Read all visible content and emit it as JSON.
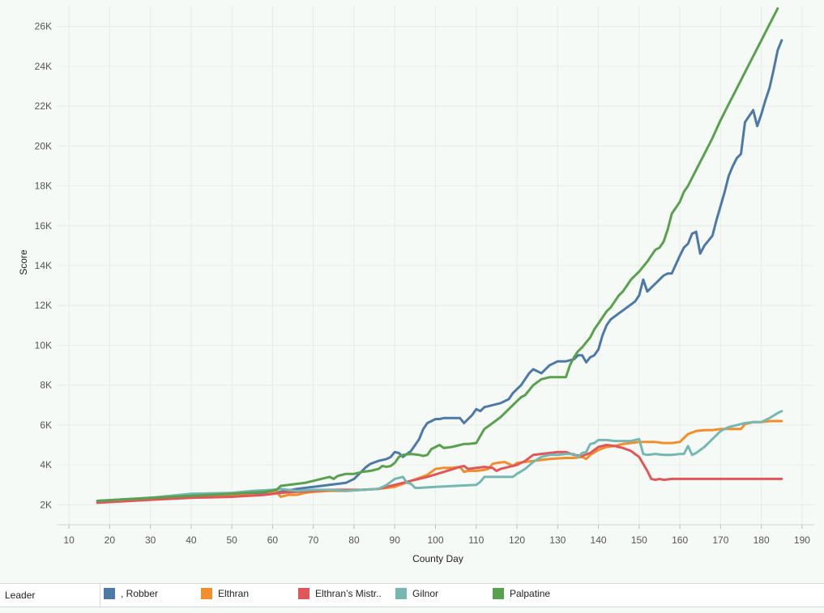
{
  "chart_data": {
    "type": "line",
    "xlabel": "County Day",
    "ylabel": "Score",
    "xlim": [
      7,
      193
    ],
    "ylim": [
      1000,
      27000
    ],
    "x_ticks": [
      10,
      20,
      30,
      40,
      50,
      60,
      70,
      80,
      90,
      100,
      110,
      120,
      130,
      140,
      150,
      160,
      170,
      180,
      190
    ],
    "y_ticks": [
      2000,
      4000,
      6000,
      8000,
      10000,
      12000,
      14000,
      16000,
      18000,
      20000,
      22000,
      24000,
      26000
    ],
    "y_tick_labels": [
      "2K",
      "4K",
      "6K",
      "8K",
      "10K",
      "12K",
      "14K",
      "16K",
      "18K",
      "20K",
      "22K",
      "24K",
      "26K"
    ],
    "grid": true,
    "legend_position": "bottom",
    "legend_title": "Leader",
    "series": [
      {
        "name": ", Robber",
        "color": "#4e79a7",
        "x": [
          17,
          30,
          40,
          50,
          58,
          62,
          66,
          70,
          74,
          78,
          80,
          81,
          82,
          83,
          84,
          86,
          88,
          89,
          90,
          91,
          92,
          93,
          94,
          95,
          96,
          97,
          98,
          99,
          100,
          101,
          102,
          104,
          106,
          107,
          108,
          109,
          110,
          111,
          112,
          114,
          116,
          118,
          119,
          120,
          121,
          122,
          123,
          124,
          126,
          128,
          130,
          132,
          133,
          134,
          135,
          136,
          137,
          138,
          139,
          140,
          141,
          142,
          143,
          145,
          147,
          149,
          150,
          151,
          152,
          153,
          154,
          155,
          156,
          157,
          158,
          160,
          161,
          162,
          163,
          164,
          165,
          166,
          168,
          169,
          170,
          171,
          172,
          173,
          174,
          175,
          176,
          177,
          178,
          179,
          180,
          181,
          182,
          183,
          184,
          185
        ],
        "y": [
          2150,
          2350,
          2450,
          2500,
          2550,
          2650,
          2800,
          2900,
          3000,
          3100,
          3300,
          3500,
          3700,
          3900,
          4050,
          4200,
          4300,
          4400,
          4650,
          4600,
          4400,
          4550,
          4700,
          5000,
          5300,
          5800,
          6100,
          6200,
          6300,
          6300,
          6350,
          6350,
          6350,
          6100,
          6300,
          6500,
          6800,
          6700,
          6900,
          7000,
          7100,
          7300,
          7600,
          7800,
          8000,
          8300,
          8600,
          8800,
          8600,
          9000,
          9200,
          9200,
          9250,
          9300,
          9500,
          9500,
          9150,
          9400,
          9500,
          9800,
          10500,
          11000,
          11300,
          11600,
          11900,
          12200,
          12500,
          13300,
          12700,
          12900,
          13100,
          13300,
          13500,
          13600,
          13600,
          14500,
          14900,
          15100,
          15600,
          15700,
          14600,
          15000,
          15500,
          16300,
          17000,
          17700,
          18500,
          19000,
          19400,
          19600,
          21200,
          21500,
          21800,
          21000,
          21600,
          22300,
          22900,
          23800,
          24800,
          25300
        ]
      },
      {
        "name": "Elthran",
        "color": "#f28e2b",
        "x": [
          17,
          30,
          40,
          50,
          58,
          61,
          62,
          64,
          66,
          68,
          70,
          74,
          78,
          82,
          86,
          90,
          94,
          98,
          100,
          102,
          104,
          106,
          107,
          108,
          110,
          112,
          113,
          114,
          115,
          117,
          118,
          119,
          120,
          124,
          128,
          132,
          134,
          136,
          137,
          138,
          140,
          142,
          144,
          146,
          148,
          150,
          152,
          154,
          156,
          158,
          160,
          162,
          164,
          166,
          168,
          170,
          172,
          174,
          175,
          176,
          177,
          178,
          180,
          182,
          185
        ],
        "y": [
          2150,
          2300,
          2400,
          2450,
          2500,
          2650,
          2400,
          2500,
          2500,
          2600,
          2650,
          2700,
          2700,
          2750,
          2800,
          2900,
          3200,
          3500,
          3800,
          3850,
          3850,
          3900,
          3650,
          3700,
          3700,
          3750,
          3800,
          4050,
          4100,
          4150,
          4050,
          3950,
          4100,
          4200,
          4300,
          4350,
          4350,
          4400,
          4300,
          4500,
          4750,
          4900,
          4950,
          5050,
          5100,
          5150,
          5150,
          5150,
          5100,
          5100,
          5150,
          5550,
          5700,
          5750,
          5750,
          5800,
          5800,
          5800,
          5800,
          6050,
          6100,
          6150,
          6150,
          6200,
          6200
        ]
      },
      {
        "name": "Elthran’s Mistr..",
        "color": "#e15759",
        "x": [
          17,
          30,
          40,
          50,
          58,
          62,
          66,
          70,
          74,
          78,
          82,
          86,
          90,
          94,
          98,
          102,
          106,
          107,
          108,
          110,
          112,
          114,
          115,
          116,
          118,
          120,
          122,
          124,
          126,
          130,
          132,
          134,
          136,
          138,
          140,
          142,
          144,
          146,
          148,
          150,
          152,
          153,
          154,
          155,
          156,
          158,
          160,
          165,
          170,
          175,
          180,
          185
        ],
        "y": [
          2100,
          2250,
          2350,
          2400,
          2500,
          2600,
          2650,
          2700,
          2750,
          2750,
          2750,
          2800,
          3000,
          3200,
          3400,
          3650,
          3900,
          3950,
          3800,
          3850,
          3900,
          3850,
          3700,
          3800,
          3900,
          4000,
          4200,
          4500,
          4550,
          4650,
          4650,
          4500,
          4450,
          4600,
          4900,
          5000,
          4950,
          4850,
          4700,
          4400,
          3700,
          3300,
          3250,
          3300,
          3250,
          3300,
          3300,
          3300,
          3300,
          3300,
          3300,
          3300
        ]
      },
      {
        "name": "Gilnor",
        "color": "#76b7b2",
        "x": [
          17,
          30,
          40,
          50,
          55,
          60,
          62,
          66,
          70,
          74,
          78,
          82,
          86,
          88,
          90,
          91,
          92,
          93,
          94,
          95,
          96,
          100,
          105,
          110,
          111,
          112,
          114,
          116,
          118,
          119,
          120,
          122,
          124,
          126,
          128,
          130,
          132,
          134,
          135,
          136,
          137,
          138,
          139,
          140,
          142,
          144,
          146,
          148,
          150,
          151,
          152,
          154,
          156,
          158,
          160,
          161,
          162,
          163,
          164,
          166,
          168,
          170,
          172,
          174,
          176,
          178,
          180,
          182,
          184,
          185
        ],
        "y": [
          2200,
          2350,
          2550,
          2600,
          2700,
          2750,
          2800,
          2700,
          2750,
          2750,
          2700,
          2750,
          2800,
          3000,
          3300,
          3350,
          3400,
          3100,
          3050,
          2850,
          2850,
          2900,
          2950,
          3000,
          3150,
          3400,
          3400,
          3400,
          3400,
          3400,
          3550,
          3800,
          4150,
          4400,
          4500,
          4500,
          4550,
          4550,
          4400,
          4600,
          4650,
          5050,
          5100,
          5250,
          5250,
          5200,
          5200,
          5200,
          5300,
          4550,
          4500,
          4550,
          4500,
          4500,
          4550,
          4550,
          4950,
          4500,
          4600,
          4900,
          5300,
          5700,
          5900,
          6000,
          6100,
          6150,
          6150,
          6350,
          6600,
          6700
        ]
      },
      {
        "name": "Palpatine",
        "color": "#59a14f",
        "x": [
          17,
          30,
          40,
          50,
          58,
          61,
          62,
          64,
          66,
          68,
          70,
          74,
          75,
          76,
          77,
          78,
          80,
          82,
          84,
          86,
          87,
          88,
          89,
          90,
          91,
          92,
          94,
          96,
          97,
          98,
          99,
          100,
          101,
          102,
          104,
          106,
          107,
          108,
          110,
          112,
          114,
          116,
          118,
          120,
          121,
          122,
          124,
          126,
          128,
          130,
          132,
          133,
          134,
          135,
          136,
          138,
          139,
          140,
          141,
          142,
          143,
          144,
          145,
          146,
          147,
          148,
          150,
          152,
          153,
          154,
          155,
          156,
          157,
          158,
          159,
          160,
          161,
          162,
          164,
          166,
          168,
          170,
          172,
          174,
          176,
          178,
          180,
          182,
          184
        ],
        "y": [
          2200,
          2350,
          2450,
          2550,
          2650,
          2750,
          2950,
          3000,
          3050,
          3100,
          3200,
          3400,
          3300,
          3450,
          3500,
          3550,
          3550,
          3650,
          3700,
          3800,
          3950,
          3900,
          3950,
          4100,
          4400,
          4500,
          4550,
          4500,
          4450,
          4500,
          4800,
          4900,
          5000,
          4850,
          4900,
          5000,
          5050,
          5050,
          5100,
          5800,
          6100,
          6400,
          6800,
          7200,
          7400,
          7500,
          8000,
          8300,
          8400,
          8400,
          8400,
          9000,
          9400,
          9700,
          9900,
          10400,
          10800,
          11100,
          11400,
          11700,
          11900,
          12200,
          12500,
          12700,
          13000,
          13300,
          13700,
          14200,
          14500,
          14800,
          14900,
          15200,
          15800,
          16600,
          16900,
          17200,
          17700,
          18000,
          18800,
          19600,
          20400,
          21300,
          22100,
          22900,
          23700,
          24500,
          25300,
          26100,
          26900
        ]
      }
    ]
  },
  "legend": {
    "title": "Leader",
    "items": [
      {
        "label": ", Robber",
        "color": "#4e79a7"
      },
      {
        "label": "Elthran",
        "color": "#f28e2b"
      },
      {
        "label": "Elthran’s Mistr..",
        "color": "#e15759"
      },
      {
        "label": "Gilnor",
        "color": "#76b7b2"
      },
      {
        "label": "Palpatine",
        "color": "#59a14f"
      }
    ]
  }
}
